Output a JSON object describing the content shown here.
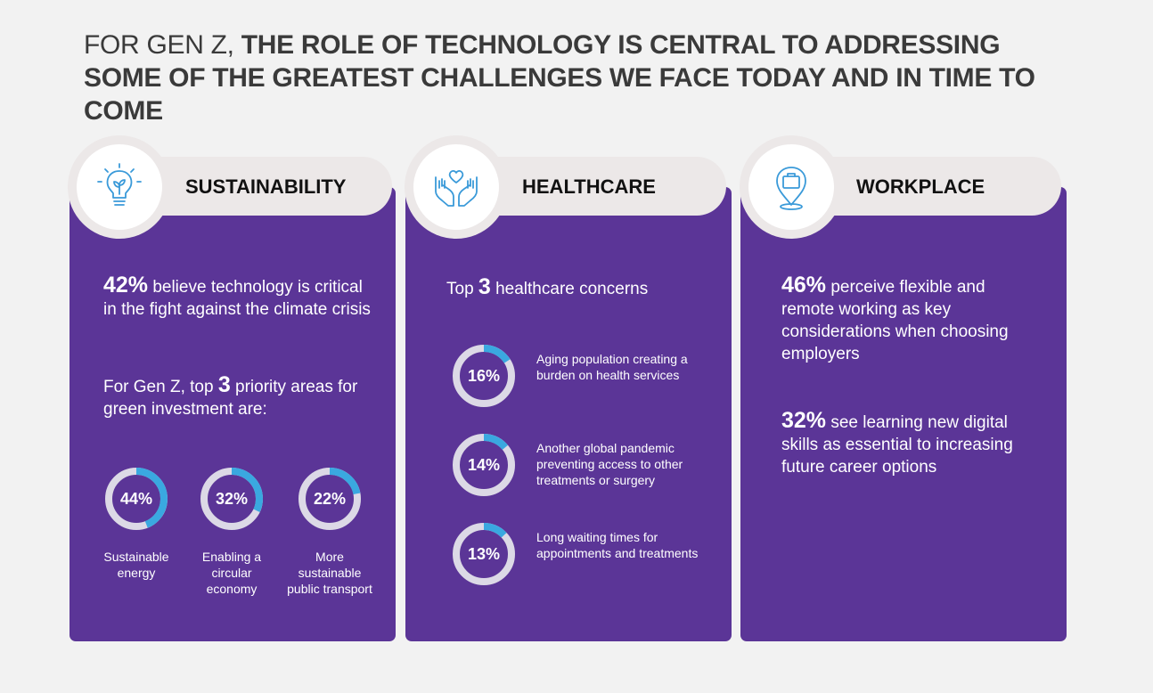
{
  "title": {
    "prefix": "FOR GEN Z,",
    "main": "THE ROLE OF TECHNOLOGY IS CENTRAL TO ADDRESSING SOME OF THE GREATEST CHALLENGES WE FACE TODAY AND IN TIME TO COME"
  },
  "colors": {
    "card": "#5b3597",
    "ring_track": "#dcd9e6",
    "ring_fill": "#3aa8e0",
    "pill": "#ece8e8",
    "background": "#f2f2f2"
  },
  "sustainability": {
    "heading": "SUSTAINABILITY",
    "icon": "lightbulb-leaf-icon",
    "stat_value": "42%",
    "stat_text": "believe technology is critical in the fight against the climate crisis",
    "priority_pre": "For Gen Z, top",
    "priority_num": "3",
    "priority_post": "priority areas for green investment are:",
    "items": [
      {
        "value": "44%",
        "fraction": 0.44,
        "caption": "Sustainable energy"
      },
      {
        "value": "32%",
        "fraction": 0.32,
        "caption": "Enabling a circular economy"
      },
      {
        "value": "22%",
        "fraction": 0.22,
        "caption": "More sustainable public transport"
      }
    ]
  },
  "healthcare": {
    "heading": "HEALTHCARE",
    "icon": "hands-heart-icon",
    "intro_pre": "Top",
    "intro_num": "3",
    "intro_post": "healthcare concerns",
    "items": [
      {
        "value": "16%",
        "fraction": 0.16,
        "caption": "Aging population creating a burden on health services"
      },
      {
        "value": "14%",
        "fraction": 0.14,
        "caption": "Another global pandemic preventing access to other treatments or surgery"
      },
      {
        "value": "13%",
        "fraction": 0.13,
        "caption": "Long waiting times for appointments and treatments"
      }
    ]
  },
  "workplace": {
    "heading": "WORKPLACE",
    "icon": "briefcase-location-icon",
    "stat1_value": "46%",
    "stat1_text": "perceive flexible and remote working as key considerations when choosing employers",
    "stat2_value": "32%",
    "stat2_text": "see learning new digital skills as essential to increasing future career options"
  }
}
